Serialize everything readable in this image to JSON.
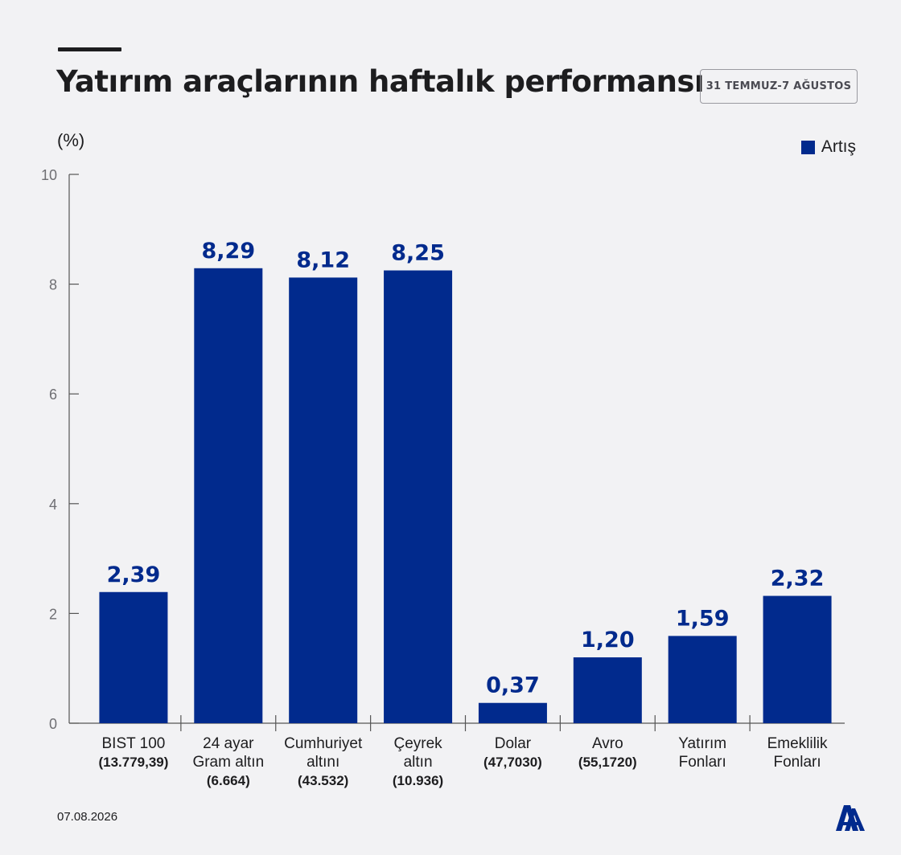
{
  "header": {
    "title": "Yatırım araçlarının haftalık performansı",
    "date_range": "31 TEMMUZ-7 AĞUSTOS",
    "unit": "(%)"
  },
  "legend": {
    "label": "Artış",
    "color": "#012a8d"
  },
  "footer": {
    "date": "07.08.2026",
    "logo_icon": "aa-logo-icon"
  },
  "colors": {
    "bar": "#012a8d",
    "value_label": "#012a8d",
    "axis": "#555555",
    "tick_label": "#6f6f73"
  },
  "chart_data": {
    "type": "bar",
    "categories": [
      [
        "BIST 100",
        "(13.779,39)"
      ],
      [
        "24 ayar",
        "Gram altın",
        "(6.664)"
      ],
      [
        "Cumhuriyet",
        "altını",
        "(43.532)"
      ],
      [
        "Çeyrek",
        "altın",
        "(10.936)"
      ],
      [
        "Dolar",
        "(47,7030)"
      ],
      [
        "Avro",
        "(55,1720)"
      ],
      [
        "Yatırım",
        "Fonları"
      ],
      [
        "Emeklilik",
        "Fonları"
      ]
    ],
    "series": [
      {
        "name": "Artış",
        "values": [
          2.39,
          8.29,
          8.12,
          8.25,
          0.37,
          1.2,
          1.59,
          2.32
        ],
        "labels": [
          "2,39",
          "8,29",
          "8,12",
          "8,25",
          "0,37",
          "1,20",
          "1,59",
          "2,32"
        ]
      }
    ],
    "yticks": [
      0,
      2,
      4,
      6,
      8,
      10
    ],
    "ylim": [
      0,
      10
    ],
    "grid": false,
    "legend_position": "top-right"
  }
}
